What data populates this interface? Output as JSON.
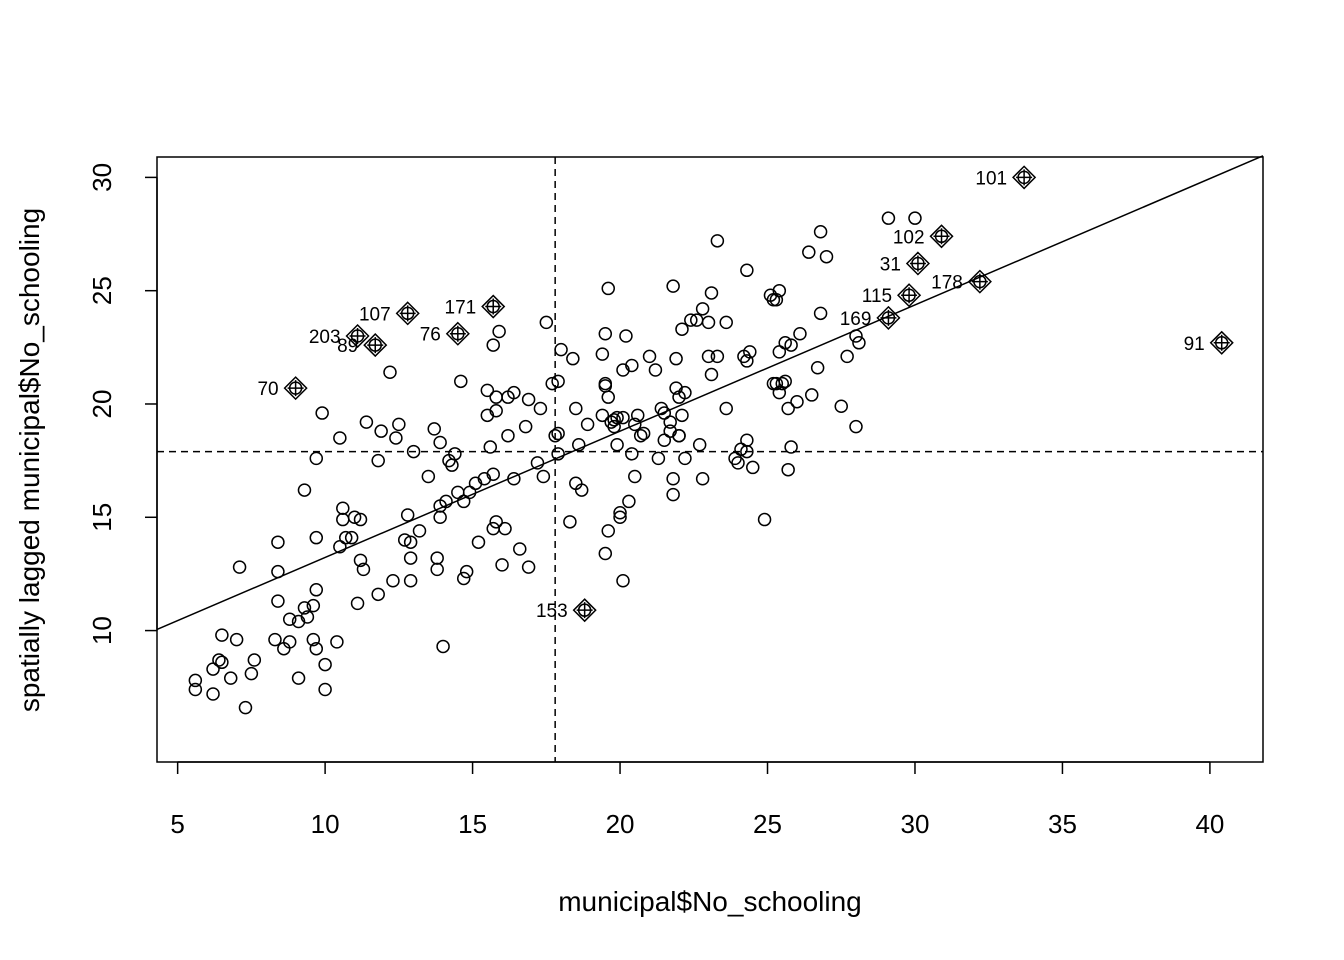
{
  "chart_data": {
    "type": "scatter",
    "title": "",
    "xlabel": "municipal$No_schooling",
    "ylabel": "spatially lagged municipal$No_schooling",
    "xlim": [
      4.3,
      41.8
    ],
    "ylim": [
      4.2,
      30.9
    ],
    "xticks": [
      5,
      10,
      15,
      20,
      25,
      30,
      35,
      40
    ],
    "yticks": [
      10,
      15,
      20,
      25,
      30
    ],
    "mean_x": 17.8,
    "mean_y": 17.9,
    "regression_line": {
      "x": [
        4.3,
        41.8
      ],
      "y": [
        10.05,
        30.95
      ]
    },
    "points": [
      [
        5.6,
        7.8
      ],
      [
        5.6,
        7.4
      ],
      [
        6.2,
        7.2
      ],
      [
        6.2,
        8.3
      ],
      [
        6.4,
        8.7
      ],
      [
        6.5,
        8.6
      ],
      [
        6.5,
        9.8
      ],
      [
        6.8,
        7.9
      ],
      [
        7.0,
        9.6
      ],
      [
        7.1,
        12.8
      ],
      [
        7.3,
        6.6
      ],
      [
        7.5,
        8.1
      ],
      [
        7.6,
        8.7
      ],
      [
        8.3,
        9.6
      ],
      [
        8.4,
        12.6
      ],
      [
        8.4,
        13.9
      ],
      [
        8.4,
        11.3
      ],
      [
        8.6,
        9.2
      ],
      [
        8.8,
        10.5
      ],
      [
        8.8,
        9.5
      ],
      [
        9.1,
        7.9
      ],
      [
        9.1,
        10.4
      ],
      [
        9.3,
        11.0
      ],
      [
        9.3,
        16.2
      ],
      [
        9.4,
        10.6
      ],
      [
        9.6,
        11.1
      ],
      [
        9.6,
        9.6
      ],
      [
        9.7,
        9.2
      ],
      [
        9.7,
        11.8
      ],
      [
        9.7,
        14.1
      ],
      [
        9.7,
        17.6
      ],
      [
        9.9,
        19.6
      ],
      [
        10.0,
        7.4
      ],
      [
        10.0,
        8.5
      ],
      [
        10.4,
        9.5
      ],
      [
        10.5,
        18.5
      ],
      [
        10.5,
        13.7
      ],
      [
        10.6,
        15.4
      ],
      [
        10.6,
        14.9
      ],
      [
        10.7,
        14.1
      ],
      [
        10.9,
        14.1
      ],
      [
        11.0,
        15.0
      ],
      [
        11.1,
        11.2
      ],
      [
        11.2,
        14.9
      ],
      [
        11.2,
        13.1
      ],
      [
        11.3,
        12.7
      ],
      [
        11.4,
        19.2
      ],
      [
        11.8,
        11.6
      ],
      [
        11.8,
        17.5
      ],
      [
        11.9,
        18.8
      ],
      [
        12.2,
        21.4
      ],
      [
        12.3,
        12.2
      ],
      [
        12.4,
        18.5
      ],
      [
        12.5,
        19.1
      ],
      [
        12.7,
        14.0
      ],
      [
        12.8,
        15.1
      ],
      [
        12.9,
        13.2
      ],
      [
        12.9,
        12.2
      ],
      [
        12.9,
        13.9
      ],
      [
        13.0,
        17.9
      ],
      [
        13.2,
        14.4
      ],
      [
        13.5,
        16.8
      ],
      [
        13.7,
        18.9
      ],
      [
        13.8,
        13.2
      ],
      [
        13.8,
        12.7
      ],
      [
        13.9,
        18.3
      ],
      [
        13.9,
        15.5
      ],
      [
        13.9,
        15.0
      ],
      [
        14.0,
        9.3
      ],
      [
        14.1,
        15.7
      ],
      [
        14.2,
        17.5
      ],
      [
        14.3,
        17.3
      ],
      [
        14.4,
        17.8
      ],
      [
        14.5,
        16.1
      ],
      [
        14.6,
        21.0
      ],
      [
        14.7,
        12.3
      ],
      [
        14.7,
        15.7
      ],
      [
        14.8,
        12.6
      ],
      [
        14.9,
        16.1
      ],
      [
        15.1,
        16.5
      ],
      [
        15.2,
        13.9
      ],
      [
        15.4,
        16.7
      ],
      [
        15.5,
        20.6
      ],
      [
        15.5,
        19.5
      ],
      [
        15.6,
        18.1
      ],
      [
        15.7,
        22.6
      ],
      [
        15.7,
        16.9
      ],
      [
        15.7,
        14.5
      ],
      [
        15.8,
        20.3
      ],
      [
        15.8,
        19.7
      ],
      [
        15.8,
        14.8
      ],
      [
        15.9,
        23.2
      ],
      [
        16.0,
        12.9
      ],
      [
        16.1,
        14.5
      ],
      [
        16.2,
        18.6
      ],
      [
        16.2,
        20.3
      ],
      [
        16.4,
        16.7
      ],
      [
        16.4,
        20.5
      ],
      [
        16.6,
        13.6
      ],
      [
        16.8,
        19.0
      ],
      [
        16.9,
        20.2
      ],
      [
        16.9,
        12.8
      ],
      [
        17.2,
        17.4
      ],
      [
        17.3,
        19.8
      ],
      [
        17.4,
        16.8
      ],
      [
        17.5,
        23.6
      ],
      [
        17.7,
        20.9
      ],
      [
        17.8,
        18.6
      ],
      [
        17.9,
        18.7
      ],
      [
        17.9,
        17.8
      ],
      [
        17.9,
        21.0
      ],
      [
        18.0,
        22.4
      ],
      [
        18.3,
        14.8
      ],
      [
        18.4,
        22.0
      ],
      [
        18.5,
        16.5
      ],
      [
        18.5,
        19.8
      ],
      [
        18.6,
        18.2
      ],
      [
        18.7,
        16.2
      ],
      [
        18.9,
        19.1
      ],
      [
        19.4,
        19.5
      ],
      [
        19.4,
        22.2
      ],
      [
        19.5,
        20.9
      ],
      [
        19.5,
        20.8
      ],
      [
        19.5,
        13.4
      ],
      [
        19.5,
        23.1
      ],
      [
        19.6,
        25.1
      ],
      [
        19.6,
        14.4
      ],
      [
        19.6,
        20.3
      ],
      [
        19.7,
        19.2
      ],
      [
        19.8,
        19.0
      ],
      [
        19.8,
        19.3
      ],
      [
        19.9,
        18.2
      ],
      [
        19.9,
        19.4
      ],
      [
        20.0,
        15.0
      ],
      [
        20.0,
        15.2
      ],
      [
        20.1,
        19.4
      ],
      [
        20.1,
        12.2
      ],
      [
        20.1,
        21.5
      ],
      [
        20.2,
        23.0
      ],
      [
        20.3,
        15.7
      ],
      [
        20.4,
        21.7
      ],
      [
        20.4,
        17.8
      ],
      [
        20.5,
        16.8
      ],
      [
        20.5,
        19.1
      ],
      [
        20.6,
        19.5
      ],
      [
        20.7,
        18.6
      ],
      [
        20.8,
        18.7
      ],
      [
        21.0,
        22.1
      ],
      [
        21.2,
        21.5
      ],
      [
        21.3,
        17.6
      ],
      [
        21.4,
        19.8
      ],
      [
        21.5,
        19.6
      ],
      [
        21.5,
        18.4
      ],
      [
        21.7,
        18.8
      ],
      [
        21.7,
        19.2
      ],
      [
        21.8,
        25.2
      ],
      [
        21.8,
        16.7
      ],
      [
        21.8,
        16.0
      ],
      [
        21.9,
        22.0
      ],
      [
        21.9,
        20.7
      ],
      [
        22.0,
        20.3
      ],
      [
        22.0,
        18.6
      ],
      [
        22.0,
        18.6
      ],
      [
        22.1,
        19.5
      ],
      [
        22.1,
        23.3
      ],
      [
        22.2,
        20.5
      ],
      [
        22.2,
        17.6
      ],
      [
        22.4,
        23.7
      ],
      [
        22.6,
        23.7
      ],
      [
        22.7,
        18.2
      ],
      [
        22.8,
        16.7
      ],
      [
        22.8,
        24.2
      ],
      [
        23.0,
        23.6
      ],
      [
        23.0,
        22.1
      ],
      [
        23.1,
        24.9
      ],
      [
        23.1,
        21.3
      ],
      [
        23.3,
        22.1
      ],
      [
        23.3,
        27.2
      ],
      [
        23.6,
        19.8
      ],
      [
        23.6,
        23.6
      ],
      [
        23.9,
        17.6
      ],
      [
        24.0,
        17.4
      ],
      [
        24.1,
        18.0
      ],
      [
        24.2,
        22.1
      ],
      [
        24.3,
        25.9
      ],
      [
        24.3,
        21.9
      ],
      [
        24.3,
        17.9
      ],
      [
        24.3,
        18.4
      ],
      [
        24.4,
        22.3
      ],
      [
        24.5,
        17.2
      ],
      [
        24.9,
        14.9
      ],
      [
        25.1,
        24.8
      ],
      [
        25.2,
        24.6
      ],
      [
        25.2,
        20.9
      ],
      [
        25.3,
        20.9
      ],
      [
        25.3,
        24.6
      ],
      [
        25.4,
        25.0
      ],
      [
        25.4,
        22.3
      ],
      [
        25.4,
        20.5
      ],
      [
        25.5,
        20.9
      ],
      [
        25.6,
        21.0
      ],
      [
        25.6,
        22.7
      ],
      [
        25.7,
        17.1
      ],
      [
        25.7,
        19.8
      ],
      [
        25.8,
        22.6
      ],
      [
        25.8,
        18.1
      ],
      [
        26.0,
        20.1
      ],
      [
        26.1,
        23.1
      ],
      [
        26.4,
        26.7
      ],
      [
        26.5,
        20.4
      ],
      [
        26.7,
        21.6
      ],
      [
        26.8,
        27.6
      ],
      [
        26.8,
        24.0
      ],
      [
        27.0,
        26.5
      ],
      [
        27.5,
        19.9
      ],
      [
        27.7,
        22.1
      ],
      [
        28.0,
        19.0
      ],
      [
        28.0,
        23.0
      ],
      [
        28.1,
        22.7
      ],
      [
        29.1,
        28.2
      ],
      [
        30.0,
        28.2
      ]
    ],
    "influential_points": [
      {
        "label": "101",
        "x": 33.7,
        "y": 30.0
      },
      {
        "label": "102",
        "x": 30.9,
        "y": 27.4
      },
      {
        "label": "31",
        "x": 30.1,
        "y": 26.2
      },
      {
        "label": "178",
        "x": 32.2,
        "y": 25.4
      },
      {
        "label": "115",
        "x": 29.8,
        "y": 24.8
      },
      {
        "label": "169",
        "x": 29.1,
        "y": 23.8
      },
      {
        "label": "91",
        "x": 40.4,
        "y": 22.7
      },
      {
        "label": "107",
        "x": 12.8,
        "y": 24.0
      },
      {
        "label": "171",
        "x": 15.7,
        "y": 24.3
      },
      {
        "label": "203",
        "x": 11.1,
        "y": 23.0
      },
      {
        "label": "89",
        "x": 11.7,
        "y": 22.6
      },
      {
        "label": "76",
        "x": 14.5,
        "y": 23.1
      },
      {
        "label": "70",
        "x": 9.0,
        "y": 20.7
      },
      {
        "label": "153",
        "x": 18.8,
        "y": 10.9
      }
    ]
  }
}
